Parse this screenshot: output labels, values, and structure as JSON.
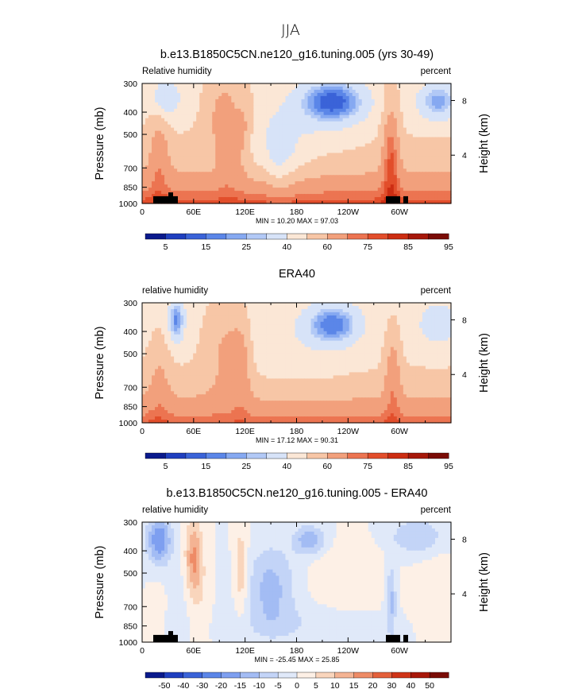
{
  "figure": {
    "title": "JJA"
  },
  "palettes": {
    "rh": [
      "#0a1a8c",
      "#1f3fbf",
      "#3a63d8",
      "#5b86e8",
      "#86a9f1",
      "#b2c9f6",
      "#d7e3f8",
      "#fbe7d6",
      "#f7c6a6",
      "#f2a07c",
      "#ec7451",
      "#e24e2b",
      "#cc2d12",
      "#a6180a",
      "#7a0c06"
    ],
    "diff": [
      "#0a1a8c",
      "#1f3fbf",
      "#3a63d8",
      "#5b86e8",
      "#7e9ff0",
      "#a3bcf4",
      "#c3d4f7",
      "#e0e9f9",
      "#fdf0e6",
      "#f9d5bc",
      "#f4b393",
      "#ee8b66",
      "#e4603b",
      "#cf3417",
      "#a8180a",
      "#7a0c06"
    ]
  },
  "chart_data": [
    {
      "type": "heatmap",
      "title": "b.e13.B1850C5CN.ne120_g16.tuning.005 (yrs 30-49)",
      "left_label": "Relative humidity",
      "right_label": "percent",
      "ylabel": "Pressure (mb)",
      "ylabel_right": "Height (km)",
      "palette": "rh",
      "x_ticks": [
        "0",
        "60E",
        "120E",
        "180",
        "120W",
        "60W"
      ],
      "x_tick_values": [
        0,
        60,
        120,
        180,
        240,
        300
      ],
      "xlim": [
        0,
        360
      ],
      "y_ticks": [
        "300",
        "400",
        "500",
        "700",
        "850",
        "1000"
      ],
      "y_tick_values": [
        300,
        400,
        500,
        700,
        850,
        1000
      ],
      "ylim": [
        1000,
        300
      ],
      "y_scale": "log",
      "height_ticks": [
        "8",
        "4"
      ],
      "height_tick_values": [
        8,
        4
      ],
      "stats": "MIN =   10.20   MAX =   97.03",
      "min": 10.2,
      "max": 97.03,
      "colorbar_labels": [
        "5",
        "15",
        "25",
        "40",
        "60",
        "75",
        "85",
        "95"
      ],
      "colorbar_levels": [
        5,
        10,
        15,
        20,
        25,
        30,
        40,
        50,
        60,
        70,
        75,
        80,
        85,
        90,
        95
      ],
      "topography": true
    },
    {
      "type": "heatmap",
      "title": "ERA40",
      "left_label": "relative humidity",
      "right_label": "percent",
      "ylabel": "Pressure (mb)",
      "ylabel_right": "Height (km)",
      "palette": "rh",
      "x_ticks": [
        "0",
        "60E",
        "120E",
        "180",
        "120W",
        "60W"
      ],
      "x_tick_values": [
        0,
        60,
        120,
        180,
        240,
        300
      ],
      "xlim": [
        0,
        360
      ],
      "y_ticks": [
        "300",
        "400",
        "500",
        "700",
        "850",
        "1000"
      ],
      "y_tick_values": [
        300,
        400,
        500,
        700,
        850,
        1000
      ],
      "ylim": [
        1000,
        300
      ],
      "y_scale": "log",
      "height_ticks": [
        "8",
        "4"
      ],
      "height_tick_values": [
        8,
        4
      ],
      "stats": "MIN =   17.12   MAX =   90.31",
      "min": 17.12,
      "max": 90.31,
      "colorbar_labels": [
        "5",
        "15",
        "25",
        "40",
        "60",
        "75",
        "85",
        "95"
      ],
      "colorbar_levels": [
        5,
        10,
        15,
        20,
        25,
        30,
        40,
        50,
        60,
        70,
        75,
        80,
        85,
        90,
        95
      ],
      "topography": false
    },
    {
      "type": "heatmap",
      "title": "b.e13.B1850C5CN.ne120_g16.tuning.005 - ERA40",
      "left_label": "relative humidity",
      "right_label": "percent",
      "ylabel": "Pressure (mb)",
      "ylabel_right": "Height (km)",
      "palette": "diff",
      "x_ticks": [
        "0",
        "60E",
        "120E",
        "180",
        "120W",
        "60W"
      ],
      "x_tick_values": [
        0,
        60,
        120,
        180,
        240,
        300
      ],
      "xlim": [
        0,
        360
      ],
      "y_ticks": [
        "300",
        "400",
        "500",
        "700",
        "850",
        "1000"
      ],
      "y_tick_values": [
        300,
        400,
        500,
        700,
        850,
        1000
      ],
      "ylim": [
        1000,
        300
      ],
      "y_scale": "log",
      "height_ticks": [
        "8",
        "4"
      ],
      "height_tick_values": [
        8,
        4
      ],
      "stats": "MIN = -25.45   MAX =   25.85",
      "min": -25.45,
      "max": 25.85,
      "colorbar_labels": [
        "-50",
        "-40",
        "-30",
        "-20",
        "-15",
        "-10",
        "-5",
        "0",
        "5",
        "10",
        "15",
        "20",
        "30",
        "40",
        "50"
      ],
      "colorbar_levels": [
        -50,
        -40,
        -30,
        -20,
        -15,
        -10,
        -5,
        0,
        5,
        10,
        15,
        20,
        30,
        40,
        50
      ],
      "topography": true
    }
  ]
}
